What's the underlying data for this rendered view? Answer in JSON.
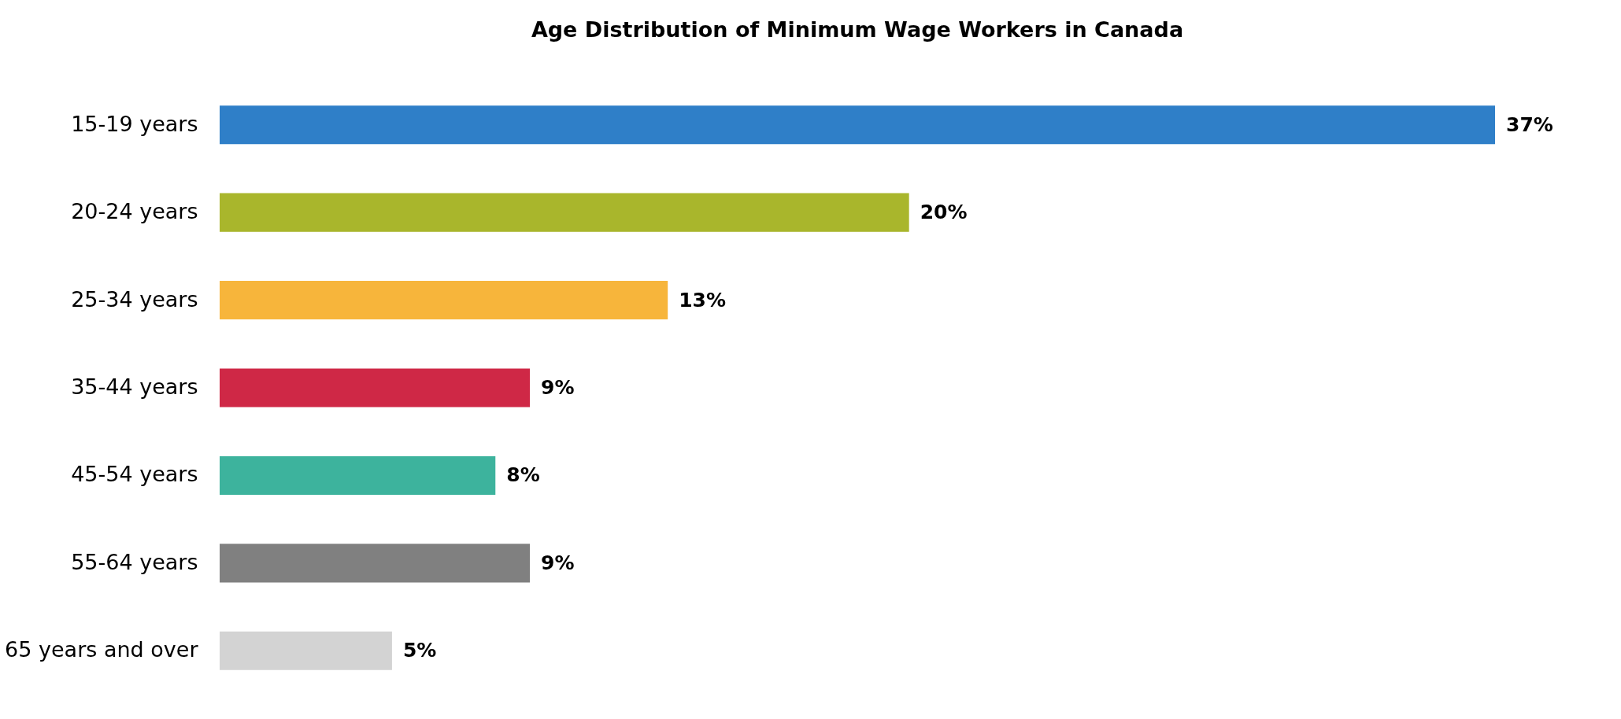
{
  "chart_data": {
    "type": "bar",
    "orientation": "horizontal",
    "title": "Age Distribution of Minimum Wage Workers in Canada",
    "categories": [
      "15-19 years",
      "20-24 years",
      "25-34 years",
      "35-44 years",
      "45-54 years",
      "55-64 years",
      "65 years and over"
    ],
    "values": [
      37,
      20,
      13,
      9,
      8,
      9,
      5
    ],
    "value_labels": [
      "37%",
      "20%",
      "13%",
      "9%",
      "8%",
      "9%",
      "5%"
    ],
    "colors": [
      "#2f7fc8",
      "#a9b62c",
      "#f7b53b",
      "#cf2846",
      "#3db39d",
      "#808080",
      "#d3d3d3"
    ]
  }
}
